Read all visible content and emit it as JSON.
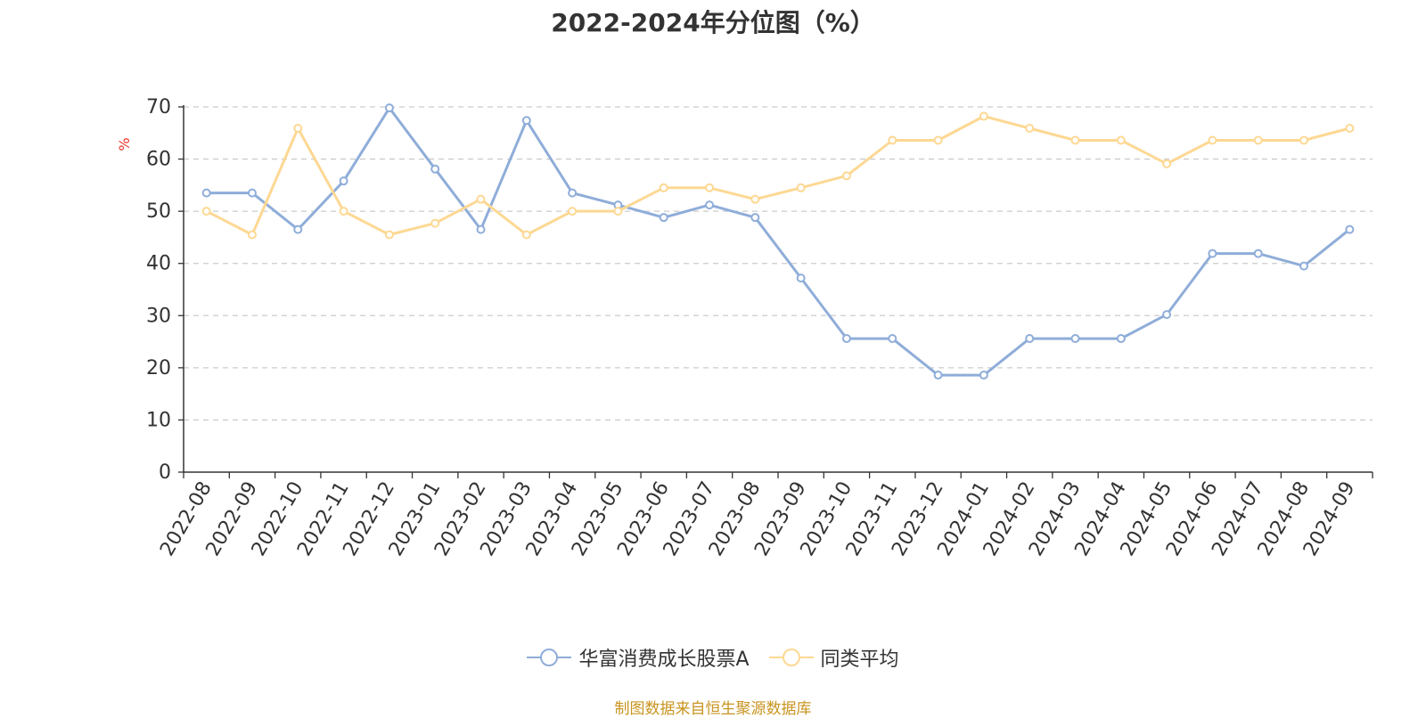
{
  "colors": {
    "fund": "#8fadd9",
    "peer": "#fdd893",
    "ylabel": "#e8352c",
    "source": "#c8941f",
    "grid": "#cccccc",
    "axis": "#333333"
  },
  "source_text": "制图数据来自恒生聚源数据库",
  "chart_data": {
    "type": "line",
    "title": "2022-2024年分位图（%）",
    "xlabel": "",
    "ylabel": "%",
    "ylim": [
      0,
      70
    ],
    "yticks": [
      0,
      10,
      20,
      30,
      40,
      50,
      60,
      70
    ],
    "grid": true,
    "legend_position": "bottom",
    "categories": [
      "2022-08",
      "2022-09",
      "2022-10",
      "2022-11",
      "2022-12",
      "2023-01",
      "2023-02",
      "2023-03",
      "2023-04",
      "2023-05",
      "2023-06",
      "2023-07",
      "2023-08",
      "2023-09",
      "2023-10",
      "2023-11",
      "2023-12",
      "2024-01",
      "2024-02",
      "2024-03",
      "2024-04",
      "2024-05",
      "2024-06",
      "2024-07",
      "2024-08",
      "2024-09"
    ],
    "series": [
      {
        "name": "华富消费成长股票A",
        "color": "#8fadd9",
        "values": [
          53.5,
          53.5,
          46.5,
          55.8,
          69.8,
          58.1,
          46.5,
          67.4,
          53.5,
          51.2,
          48.8,
          51.2,
          48.8,
          37.2,
          25.6,
          25.6,
          18.6,
          18.6,
          25.6,
          25.6,
          25.6,
          30.2,
          41.9,
          41.9,
          39.5,
          46.5
        ]
      },
      {
        "name": "同类平均",
        "color": "#fdd893",
        "values": [
          50.0,
          45.5,
          65.9,
          50.0,
          45.5,
          47.7,
          52.3,
          45.5,
          50.0,
          50.0,
          54.5,
          54.5,
          52.3,
          54.5,
          56.8,
          63.6,
          63.6,
          68.2,
          65.9,
          63.6,
          63.6,
          59.1,
          63.6,
          63.6,
          63.6,
          65.9
        ]
      }
    ]
  }
}
